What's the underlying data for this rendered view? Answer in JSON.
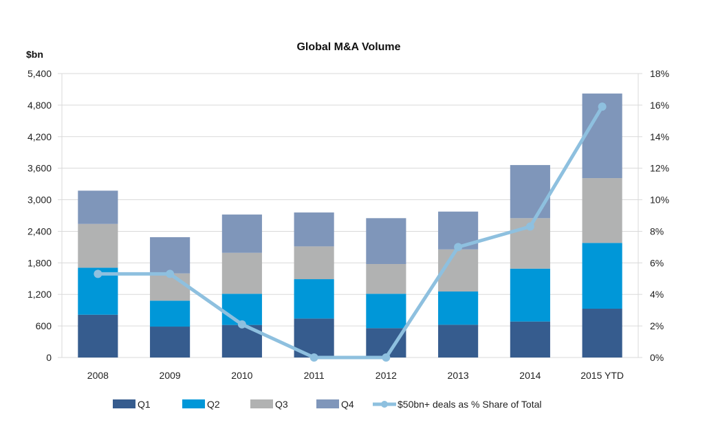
{
  "chart_data": {
    "type": "bar",
    "subtype": "stacked-bar-with-line",
    "title": "Global M&A Volume",
    "ylabel": "$bn",
    "ylabel_right": "",
    "xlabel": "",
    "categories": [
      "2008",
      "2009",
      "2010",
      "2011",
      "2012",
      "2013",
      "2014",
      "2015 YTD"
    ],
    "ylim": [
      0,
      5400
    ],
    "yticks": [
      0,
      600,
      1200,
      1800,
      2400,
      3000,
      3600,
      4200,
      4800,
      5400
    ],
    "ytick_labels": [
      "0",
      "600",
      "1,200",
      "1,800",
      "2,400",
      "3,000",
      "3,600",
      "4,200",
      "4,800",
      "5,400"
    ],
    "ylim_right": [
      0,
      18
    ],
    "yticks_right": [
      0,
      2,
      4,
      6,
      8,
      10,
      12,
      14,
      16,
      18
    ],
    "ytick_labels_right": [
      "0%",
      "2%",
      "4%",
      "6%",
      "8%",
      "10%",
      "12%",
      "14%",
      "16%",
      "18%"
    ],
    "grid": true,
    "legend_position": "bottom",
    "series": [
      {
        "name": "Q1",
        "type": "bar",
        "axis": "left",
        "color": "#365c8e",
        "values": [
          814,
          588,
          619,
          741,
          558,
          623,
          684,
          928
        ]
      },
      {
        "name": "Q2",
        "type": "bar",
        "axis": "left",
        "color": "#0097d8",
        "values": [
          894,
          493,
          593,
          749,
          654,
          632,
          1006,
          1251
        ]
      },
      {
        "name": "Q3",
        "type": "bar",
        "axis": "left",
        "color": "#b1b2b2",
        "values": [
          832,
          518,
          779,
          623,
          566,
          801,
          960,
          1233
        ]
      },
      {
        "name": "Q4",
        "type": "bar",
        "axis": "left",
        "color": "#7f96ba",
        "values": [
          633,
          689,
          728,
          645,
          872,
          719,
          1010,
          1608
        ]
      },
      {
        "name": "$50bn+ deals as % Share of Total",
        "type": "line",
        "axis": "right",
        "color": "#8ec0df",
        "values": [
          5.3,
          5.3,
          2.1,
          0.0,
          0.0,
          7.0,
          8.3,
          15.9
        ]
      }
    ]
  }
}
